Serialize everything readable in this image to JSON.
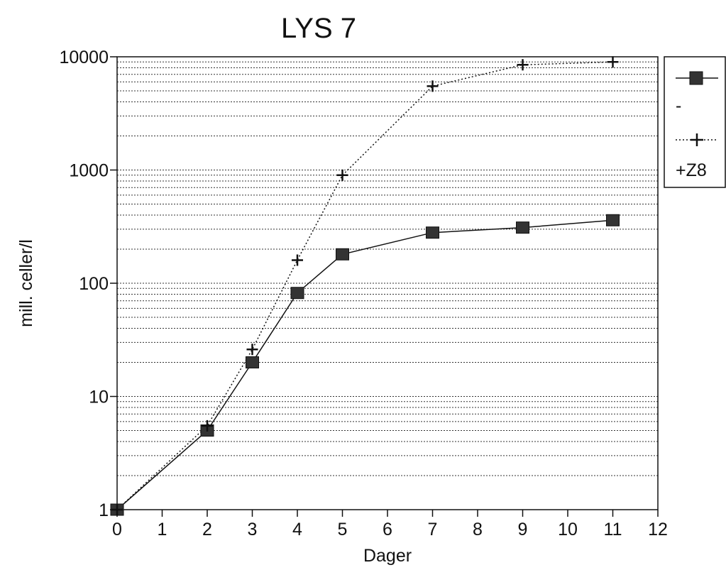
{
  "chart_data": {
    "type": "line",
    "title": "LYS 7",
    "xlabel": "Dager",
    "ylabel": "mill. celler/l",
    "xlim": [
      0,
      12
    ],
    "ylim": [
      1,
      10000
    ],
    "yscale": "log",
    "x_ticks": [
      "0",
      "1",
      "2",
      "3",
      "4",
      "5",
      "6",
      "7",
      "8",
      "9",
      "10",
      "11",
      "12"
    ],
    "y_ticks": [
      "1",
      "10",
      "100",
      "1000",
      "10000"
    ],
    "grid": "horizontal dotted minor lines",
    "legend_position": "right",
    "series": [
      {
        "name": "-",
        "marker": "square",
        "line": "solid",
        "x": [
          0,
          2,
          3,
          4,
          5,
          7,
          9,
          11
        ],
        "y": [
          1,
          5,
          20,
          82,
          180,
          280,
          310,
          360
        ]
      },
      {
        "name": "+Z8",
        "marker": "plus",
        "line": "dotted",
        "x": [
          0,
          2,
          3,
          4,
          5,
          7,
          9,
          11
        ],
        "y": [
          1,
          5.5,
          26,
          160,
          900,
          5500,
          8500,
          9000
        ]
      }
    ]
  }
}
